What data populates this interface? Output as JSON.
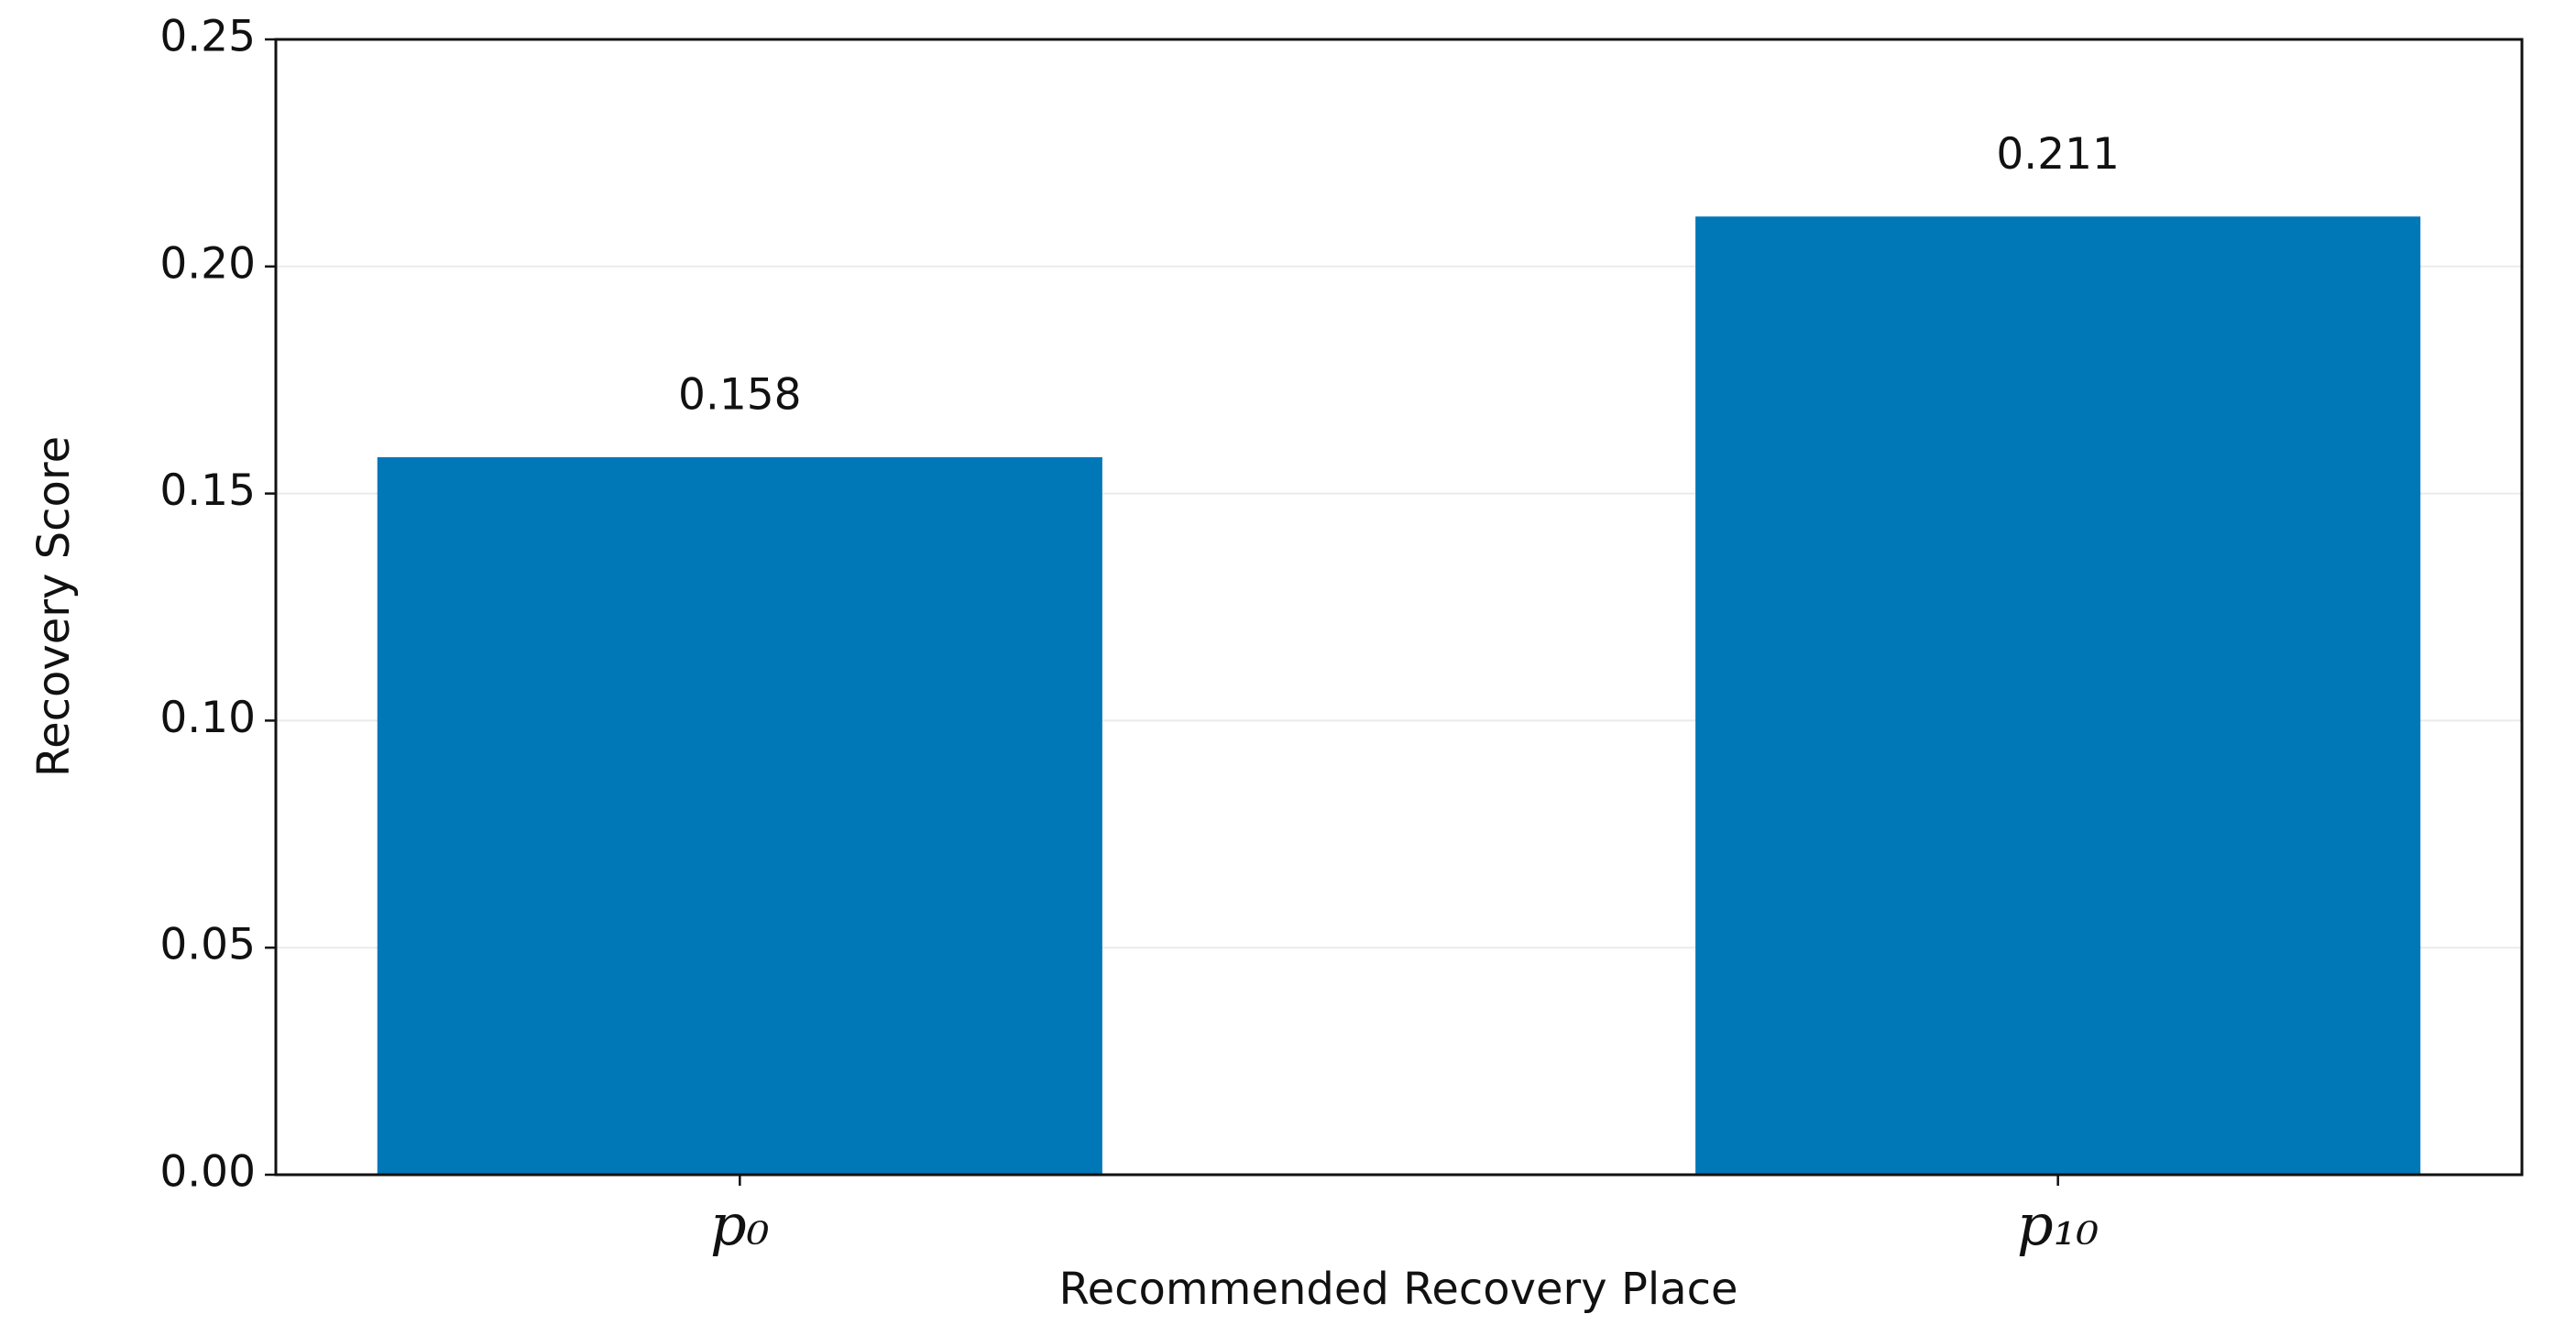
{
  "chart_data": {
    "type": "bar",
    "categories": [
      "p₀",
      "p₁₀"
    ],
    "values": [
      0.158,
      0.211
    ],
    "color": "#0077b6",
    "xlabel": "Recommended Recovery Place",
    "ylabel": "Recovery Score",
    "ylim": [
      0,
      0.25
    ],
    "yticks": [
      {
        "value": 0,
        "label": "0.00"
      },
      0.05,
      {
        "value": 0.1,
        "label": "0.10"
      },
      0.15,
      {
        "value": 0.2,
        "label": "0.20"
      },
      0.25
    ],
    "grid": true
  }
}
